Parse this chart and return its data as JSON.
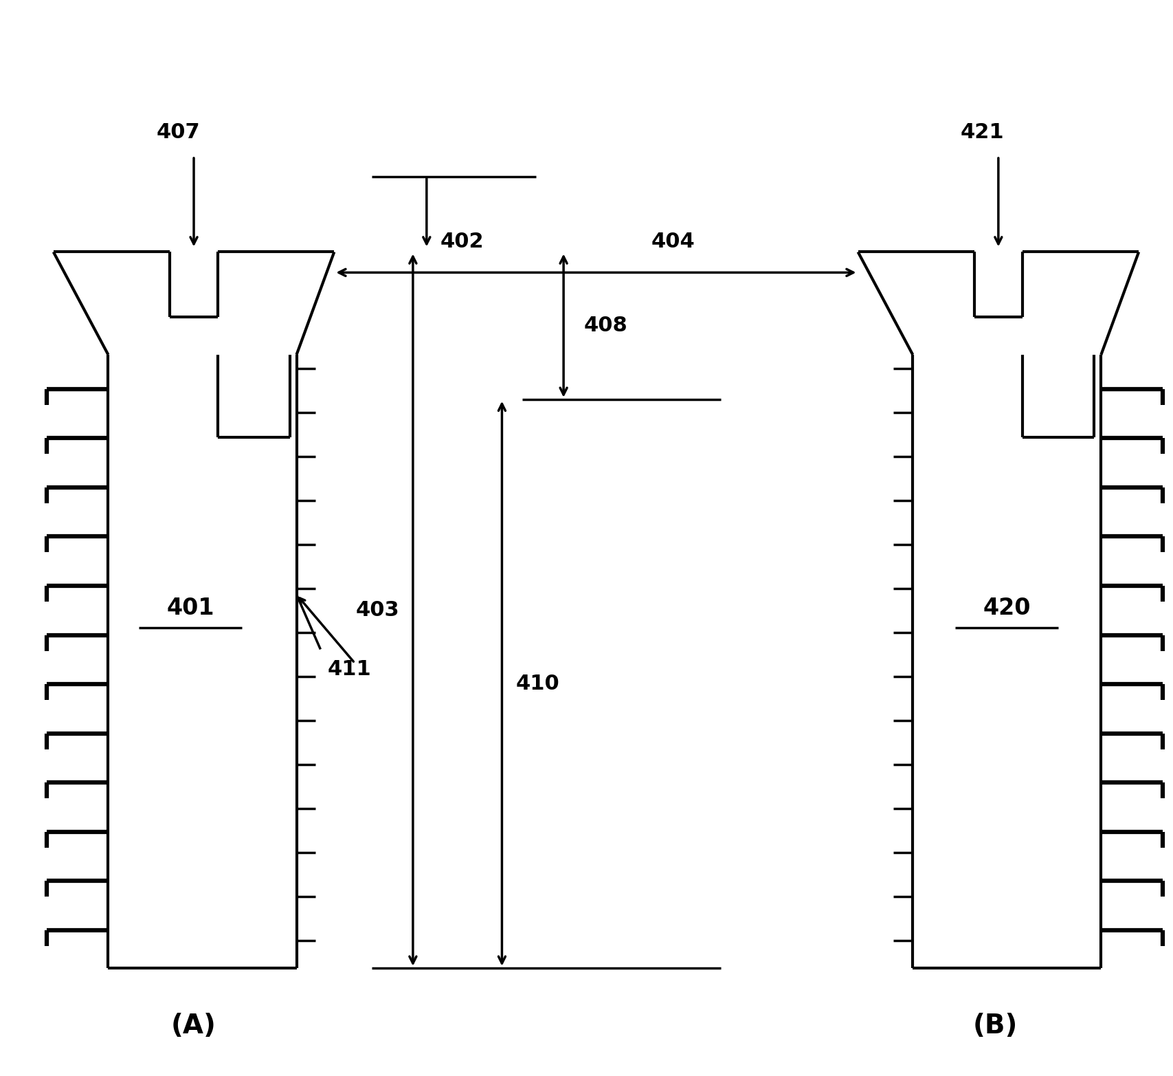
{
  "bg_color": "#ffffff",
  "fig_width": 17.08,
  "fig_height": 15.65,
  "dpi": 100
}
